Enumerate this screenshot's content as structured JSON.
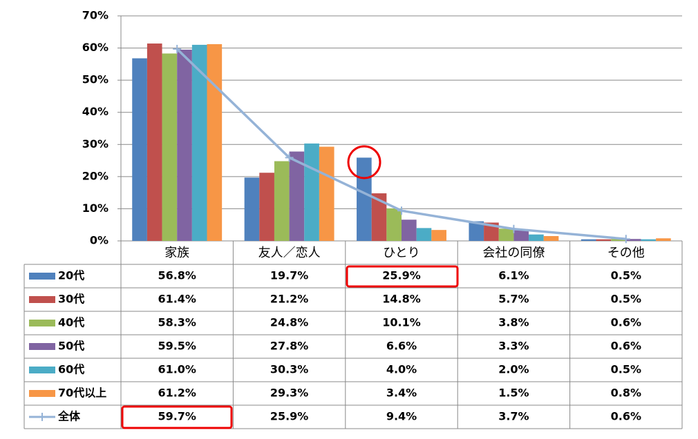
{
  "chart_data": {
    "type": "bar",
    "categories": [
      "家族",
      "友人／恋人",
      "ひとり",
      "会社の同僚",
      "その他"
    ],
    "ylim": [
      0,
      70
    ],
    "yticks": [
      {
        "value": 0,
        "label": "0%"
      },
      {
        "value": 10,
        "label": "10%"
      },
      {
        "value": 20,
        "label": "20%"
      },
      {
        "value": 30,
        "label": "30%"
      },
      {
        "value": 40,
        "label": "40%"
      },
      {
        "value": 50,
        "label": "50%"
      },
      {
        "value": 60,
        "label": "60%"
      },
      {
        "value": 70,
        "label": "70%"
      }
    ],
    "grid": true,
    "series": [
      {
        "name": "20代",
        "color": "#4f81bd",
        "values": [
          56.8,
          19.7,
          25.9,
          6.1,
          0.5
        ],
        "value_labels": [
          "56.8%",
          "19.7%",
          "25.9%",
          "6.1%",
          "0.5%"
        ]
      },
      {
        "name": "30代",
        "color": "#c0504d",
        "values": [
          61.4,
          21.2,
          14.8,
          5.7,
          0.5
        ],
        "value_labels": [
          "61.4%",
          "21.2%",
          "14.8%",
          "5.7%",
          "0.5%"
        ]
      },
      {
        "name": "40代",
        "color": "#9bbb59",
        "values": [
          58.3,
          24.8,
          10.1,
          3.8,
          0.6
        ],
        "value_labels": [
          "58.3%",
          "24.8%",
          "10.1%",
          "3.8%",
          "0.6%"
        ]
      },
      {
        "name": "50代",
        "color": "#8064a2",
        "values": [
          59.5,
          27.8,
          6.6,
          3.3,
          0.6
        ],
        "value_labels": [
          "59.5%",
          "27.8%",
          "6.6%",
          "3.3%",
          "0.6%"
        ]
      },
      {
        "name": "60代",
        "color": "#4bacc6",
        "values": [
          61.0,
          30.3,
          4.0,
          2.0,
          0.5
        ],
        "value_labels": [
          "61.0%",
          "30.3%",
          "4.0%",
          "2.0%",
          "0.5%"
        ]
      },
      {
        "name": "70代以上",
        "color": "#f79646",
        "values": [
          61.2,
          29.3,
          3.4,
          1.5,
          0.8
        ],
        "value_labels": [
          "61.2%",
          "29.3%",
          "3.4%",
          "1.5%",
          "0.8%"
        ]
      },
      {
        "name": "全体",
        "type": "line",
        "color": "#95b3d7",
        "values": [
          59.7,
          25.9,
          9.4,
          3.7,
          0.6
        ],
        "value_labels": [
          "59.7%",
          "25.9%",
          "9.4%",
          "3.7%",
          "0.6%"
        ]
      }
    ]
  }
}
